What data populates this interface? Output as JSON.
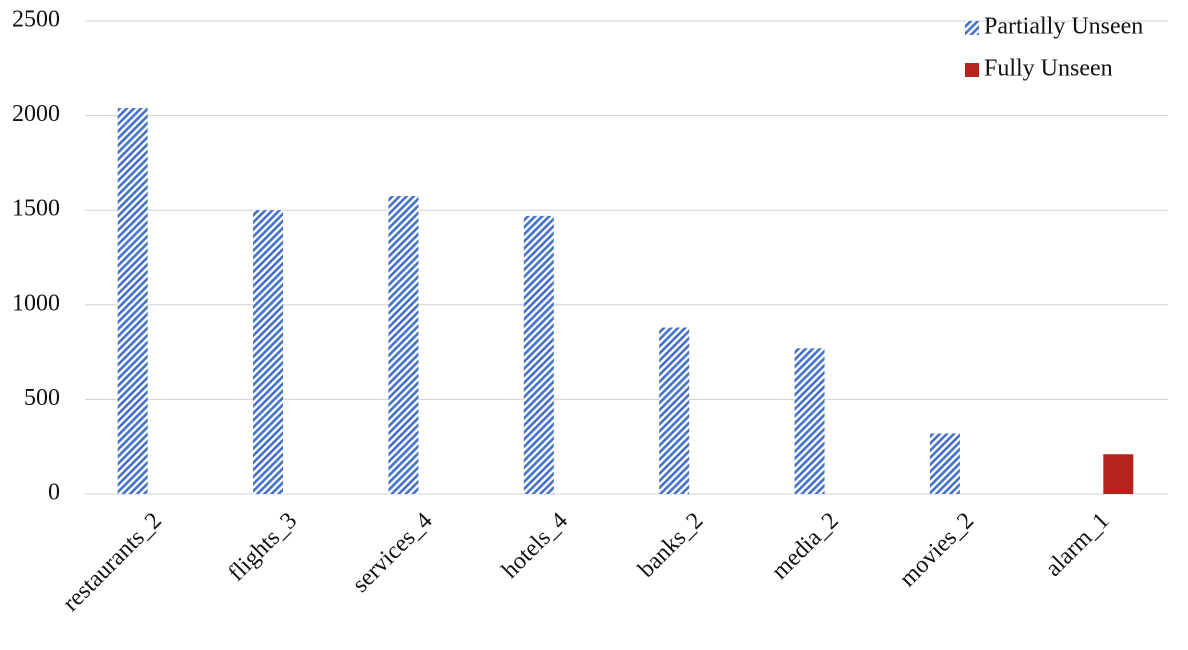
{
  "chart_data": {
    "type": "bar",
    "categories": [
      "restaurants_2",
      "flights_3",
      "services_4",
      "hotels_4",
      "banks_2",
      "media_2",
      "movies_2",
      "alarm_1"
    ],
    "series": [
      {
        "name": "Partially Unseen",
        "color": "#4472c4",
        "pattern": "hatch",
        "values": [
          2040,
          1500,
          1575,
          1470,
          880,
          770,
          320,
          null
        ]
      },
      {
        "name": "Fully Unseen",
        "color": "#b5231c",
        "pattern": "solid",
        "values": [
          null,
          null,
          null,
          null,
          null,
          null,
          null,
          210
        ]
      }
    ],
    "ylim": [
      0,
      2500
    ],
    "yticks": [
      0,
      500,
      1000,
      1500,
      2000,
      2500
    ],
    "grid": true,
    "legend": "top-right"
  }
}
